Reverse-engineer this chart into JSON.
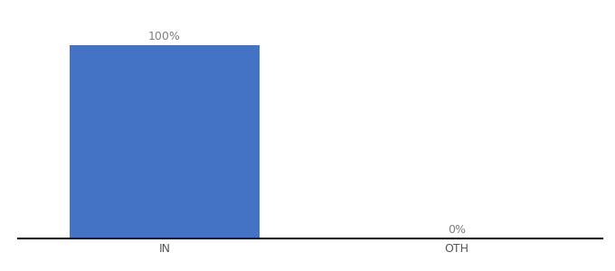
{
  "categories": [
    "IN",
    "OTH"
  ],
  "values": [
    100,
    0
  ],
  "bar_color": "#4472c4",
  "label_color": "#7f7f7f",
  "axis_color": "#111111",
  "tick_color": "#555555",
  "background_color": "#ffffff",
  "bar_labels": [
    "100%",
    "0%"
  ],
  "ylim": [
    0,
    112
  ],
  "bar_width": 0.65,
  "label_fontsize": 9,
  "tick_fontsize": 9,
  "xlim": [
    -0.5,
    1.5
  ]
}
